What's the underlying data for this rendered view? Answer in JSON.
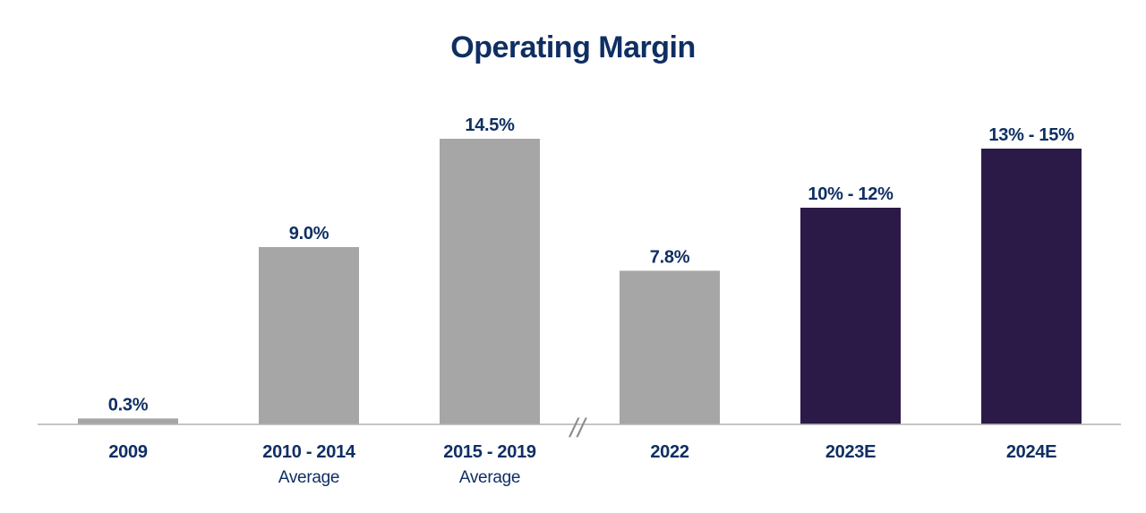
{
  "chart_data": {
    "type": "bar",
    "title": "Operating Margin",
    "xlabel": "",
    "ylabel": "",
    "ylim": [
      0,
      16
    ],
    "grid": false,
    "legend": "none",
    "axis_break_after_index": 2,
    "axis_break_symbol": "//",
    "colors": {
      "actual": "#a6a6a6",
      "estimate": "#2b1a47",
      "text": "#0f2f63",
      "axis": "#b3b3b3"
    },
    "categories": [
      {
        "label": "2009",
        "sublabel": "",
        "value": 0.3,
        "value_label": "0.3%",
        "estimate": false
      },
      {
        "label": "2010 - 2014",
        "sublabel": "Average",
        "value": 9.0,
        "value_label": "9.0%",
        "estimate": false
      },
      {
        "label": "2015 - 2019",
        "sublabel": "Average",
        "value": 14.5,
        "value_label": "14.5%",
        "estimate": false
      },
      {
        "label": "2022",
        "sublabel": "",
        "value": 7.8,
        "value_label": "7.8%",
        "estimate": false
      },
      {
        "label": "2023E",
        "sublabel": "",
        "value": 11,
        "range": [
          10,
          12
        ],
        "value_label": "10% - 12%",
        "estimate": true
      },
      {
        "label": "2024E",
        "sublabel": "",
        "value": 14,
        "range": [
          13,
          15
        ],
        "value_label": "13% - 15%",
        "estimate": true
      }
    ]
  }
}
